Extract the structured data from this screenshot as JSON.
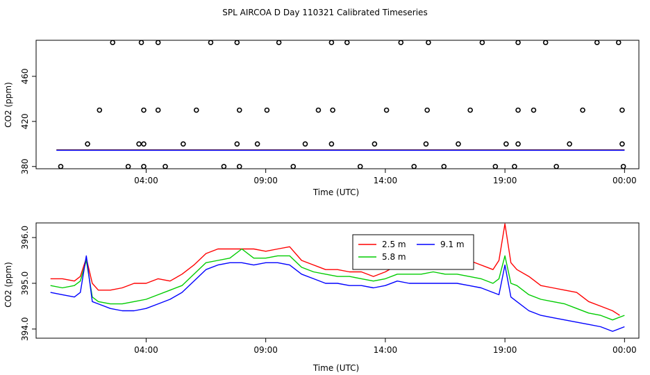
{
  "figure_title": "SPL AIRCOA D  Day 110321  Calibrated Timeseries",
  "chart_data": [
    {
      "type": "scatter",
      "title": "SPL AIRCOA D  Day 110321  Calibrated Timeseries",
      "xlabel": "Time (UTC)",
      "ylabel": "CO2 (ppm)",
      "x_unit": "hours since 00:00 UTC",
      "xlim": [
        -0.6,
        24.6
      ],
      "ylim": [
        378,
        492
      ],
      "x_ticks": [
        4,
        9,
        14,
        19,
        24
      ],
      "x_tick_labels": [
        "04:00",
        "09:00",
        "14:00",
        "19:00",
        "00:00"
      ],
      "y_ticks": [
        380,
        420,
        460
      ],
      "y_tick_labels": [
        "380",
        "420",
        "460"
      ],
      "grid": false,
      "points_x": [
        0.43,
        1.55,
        2.05,
        2.6,
        3.25,
        3.7,
        3.8,
        3.9,
        3.9,
        3.9,
        4.5,
        4.5,
        4.8,
        5.55,
        6.1,
        6.7,
        7.25,
        7.8,
        7.8,
        7.9,
        7.9,
        8.65,
        9.05,
        9.55,
        10.15,
        10.65,
        11.2,
        11.75,
        11.75,
        11.8,
        12.4,
        12.95,
        13.55,
        14.05,
        14.65,
        15.2,
        15.7,
        15.75,
        15.8,
        16.45,
        17.05,
        17.55,
        18.05,
        18.6,
        19.05,
        19.4,
        19.55,
        19.55,
        19.55,
        20.2,
        20.7,
        21.15,
        21.7,
        22.25,
        22.85,
        23.75,
        23.9,
        23.9,
        23.95
      ],
      "points_y": [
        380,
        400,
        430,
        490,
        380,
        400,
        490,
        430,
        400,
        380,
        430,
        490,
        380,
        400,
        430,
        490,
        380,
        400,
        490,
        430,
        380,
        400,
        430,
        490,
        380,
        400,
        430,
        400,
        490,
        430,
        490,
        380,
        400,
        430,
        490,
        380,
        400,
        430,
        490,
        380,
        400,
        430,
        490,
        380,
        400,
        380,
        400,
        430,
        490,
        430,
        490,
        380,
        400,
        430,
        490,
        490,
        430,
        400,
        380
      ],
      "series": [
        {
          "name": "2.5 m",
          "color": "#ff0000",
          "value": 394.8,
          "x_range": [
            0.25,
            24.0
          ]
        },
        {
          "name": "5.8 m",
          "color": "#00cc00",
          "value": 394.6,
          "x_range": [
            0.25,
            24.0
          ]
        },
        {
          "name": "9.1 m",
          "color": "#0000ff",
          "value": 394.4,
          "x_range": [
            0.25,
            24.0
          ]
        }
      ]
    },
    {
      "type": "line",
      "title": "",
      "xlabel": "Time (UTC)",
      "ylabel": "CO2 (ppm)",
      "x_unit": "hours since 00:00 UTC",
      "xlim": [
        -0.6,
        24.6
      ],
      "ylim": [
        393.8,
        396.32
      ],
      "x_ticks": [
        4,
        9,
        14,
        19,
        24
      ],
      "x_tick_labels": [
        "04:00",
        "09:00",
        "14:00",
        "19:00",
        "00:00"
      ],
      "y_ticks": [
        394.0,
        395.0,
        396.0
      ],
      "y_tick_labels": [
        "394.0",
        "395.0",
        "396.0"
      ],
      "grid": false,
      "legend": {
        "position": "top-center",
        "entries": [
          "2.5 m",
          "5.8 m",
          "9.1 m"
        ]
      },
      "series": [
        {
          "name": "2.5 m",
          "color": "#ff0000",
          "x": [
            0.0,
            0.5,
            1.0,
            1.25,
            1.5,
            1.75,
            2.0,
            2.5,
            3.0,
            3.5,
            4.0,
            4.5,
            5.0,
            5.5,
            6.0,
            6.5,
            7.0,
            7.5,
            8.0,
            8.5,
            9.0,
            9.5,
            10.0,
            10.5,
            11.0,
            11.5,
            12.0,
            12.5,
            13.0,
            13.5,
            14.0,
            14.5,
            15.0,
            15.5,
            16.0,
            16.5,
            17.0,
            17.5,
            18.0,
            18.5,
            18.75,
            19.0,
            19.25,
            19.5,
            20.0,
            20.5,
            21.0,
            21.5,
            22.0,
            22.5,
            23.0,
            23.5,
            23.8
          ],
          "y": [
            395.1,
            395.1,
            395.05,
            395.15,
            395.55,
            395.0,
            394.85,
            394.85,
            394.9,
            395.0,
            395.0,
            395.1,
            395.05,
            395.2,
            395.4,
            395.65,
            395.75,
            395.75,
            395.75,
            395.75,
            395.7,
            395.75,
            395.8,
            395.5,
            395.4,
            395.3,
            395.3,
            395.25,
            395.25,
            395.15,
            395.25,
            395.4,
            395.35,
            395.45,
            395.5,
            395.55,
            395.5,
            395.5,
            395.4,
            395.3,
            395.5,
            396.3,
            395.45,
            395.3,
            395.15,
            394.95,
            394.9,
            394.85,
            394.8,
            394.6,
            394.5,
            394.4,
            394.3
          ]
        },
        {
          "name": "5.8 m",
          "color": "#00cc00",
          "x": [
            0.0,
            0.5,
            1.0,
            1.25,
            1.5,
            1.75,
            2.0,
            2.5,
            3.0,
            3.5,
            4.0,
            4.5,
            5.0,
            5.5,
            6.0,
            6.5,
            7.0,
            7.5,
            8.0,
            8.5,
            9.0,
            9.5,
            10.0,
            10.5,
            11.0,
            11.5,
            12.0,
            12.5,
            13.0,
            13.5,
            14.0,
            14.5,
            15.0,
            15.5,
            16.0,
            16.5,
            17.0,
            17.5,
            18.0,
            18.5,
            18.75,
            19.0,
            19.25,
            19.5,
            20.0,
            20.5,
            21.0,
            21.5,
            22.0,
            22.5,
            23.0,
            23.5,
            24.0
          ],
          "y": [
            394.95,
            394.9,
            394.95,
            395.05,
            395.5,
            394.7,
            394.6,
            394.55,
            394.55,
            394.6,
            394.65,
            394.75,
            394.85,
            394.95,
            395.2,
            395.45,
            395.5,
            395.55,
            395.75,
            395.55,
            395.55,
            395.6,
            395.6,
            395.35,
            395.25,
            395.2,
            395.15,
            395.15,
            395.1,
            395.05,
            395.1,
            395.2,
            395.2,
            395.2,
            395.25,
            395.2,
            395.2,
            395.15,
            395.1,
            395.0,
            395.1,
            395.6,
            395.0,
            394.95,
            394.75,
            394.65,
            394.6,
            394.55,
            394.45,
            394.35,
            394.3,
            394.2,
            394.3
          ]
        },
        {
          "name": "9.1 m",
          "color": "#0000ff",
          "x": [
            0.0,
            0.5,
            1.0,
            1.25,
            1.5,
            1.75,
            2.0,
            2.5,
            3.0,
            3.5,
            4.0,
            4.5,
            5.0,
            5.5,
            6.0,
            6.5,
            7.0,
            7.5,
            8.0,
            8.5,
            9.0,
            9.5,
            10.0,
            10.5,
            11.0,
            11.5,
            12.0,
            12.5,
            13.0,
            13.5,
            14.0,
            14.5,
            15.0,
            15.5,
            16.0,
            16.5,
            17.0,
            17.5,
            18.0,
            18.5,
            18.75,
            19.0,
            19.25,
            19.5,
            20.0,
            20.5,
            21.0,
            21.5,
            22.0,
            22.5,
            23.0,
            23.5,
            24.0
          ],
          "y": [
            394.8,
            394.75,
            394.7,
            394.8,
            395.6,
            394.6,
            394.55,
            394.45,
            394.4,
            394.4,
            394.45,
            394.55,
            394.65,
            394.8,
            395.05,
            395.3,
            395.4,
            395.45,
            395.45,
            395.4,
            395.45,
            395.45,
            395.4,
            395.2,
            395.1,
            395.0,
            395.0,
            394.95,
            394.95,
            394.9,
            394.95,
            395.05,
            395.0,
            395.0,
            395.0,
            395.0,
            395.0,
            394.95,
            394.9,
            394.8,
            394.75,
            395.4,
            394.7,
            394.6,
            394.4,
            394.3,
            394.25,
            394.2,
            394.15,
            394.1,
            394.05,
            393.95,
            394.05
          ]
        }
      ]
    }
  ]
}
